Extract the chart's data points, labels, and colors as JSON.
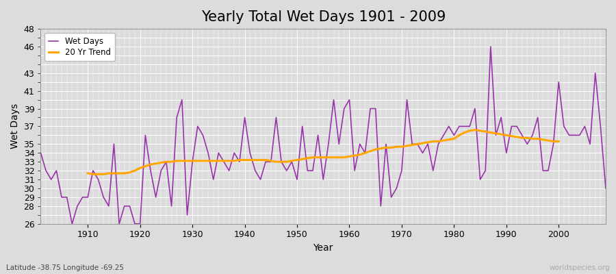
{
  "title": "Yearly Total Wet Days 1901 - 2009",
  "xlabel": "Year",
  "ylabel": "Wet Days",
  "subtitle": "Latitude -38.75 Longitude -69.25",
  "watermark": "worldspecies.org",
  "years": [
    1901,
    1902,
    1903,
    1904,
    1905,
    1906,
    1907,
    1908,
    1909,
    1910,
    1911,
    1912,
    1913,
    1914,
    1915,
    1916,
    1917,
    1918,
    1919,
    1920,
    1921,
    1922,
    1923,
    1924,
    1925,
    1926,
    1927,
    1928,
    1929,
    1930,
    1931,
    1932,
    1933,
    1934,
    1935,
    1936,
    1937,
    1938,
    1939,
    1940,
    1941,
    1942,
    1943,
    1944,
    1945,
    1946,
    1947,
    1948,
    1949,
    1950,
    1951,
    1952,
    1953,
    1954,
    1955,
    1956,
    1957,
    1958,
    1959,
    1960,
    1961,
    1962,
    1963,
    1964,
    1965,
    1966,
    1967,
    1968,
    1969,
    1970,
    1971,
    1972,
    1973,
    1974,
    1975,
    1976,
    1977,
    1978,
    1979,
    1980,
    1981,
    1982,
    1983,
    1984,
    1985,
    1986,
    1987,
    1988,
    1989,
    1990,
    1991,
    1992,
    1993,
    1994,
    1995,
    1996,
    1997,
    1998,
    1999,
    2000,
    2001,
    2002,
    2003,
    2004,
    2005,
    2006,
    2007,
    2008,
    2009
  ],
  "wet_days": [
    34,
    32,
    31,
    32,
    29,
    29,
    26,
    28,
    29,
    29,
    32,
    31,
    29,
    28,
    35,
    26,
    28,
    28,
    26,
    26,
    36,
    32,
    29,
    32,
    33,
    28,
    38,
    40,
    27,
    33,
    37,
    36,
    34,
    31,
    34,
    33,
    32,
    34,
    33,
    38,
    34,
    32,
    31,
    33,
    33,
    38,
    33,
    32,
    33,
    31,
    37,
    32,
    32,
    36,
    31,
    35,
    40,
    35,
    39,
    40,
    32,
    35,
    34,
    39,
    39,
    28,
    35,
    29,
    30,
    32,
    40,
    35,
    35,
    34,
    35,
    32,
    35,
    36,
    37,
    36,
    37,
    37,
    37,
    39,
    31,
    32,
    46,
    36,
    38,
    34,
    37,
    37,
    36,
    35,
    36,
    38,
    32,
    32,
    35,
    42,
    37,
    36,
    36,
    36,
    37,
    35,
    43,
    37,
    30
  ],
  "trend_years": [
    1910,
    1911,
    1912,
    1913,
    1914,
    1915,
    1916,
    1917,
    1918,
    1919,
    1920,
    1921,
    1922,
    1923,
    1924,
    1925,
    1926,
    1927,
    1928,
    1929,
    1930,
    1931,
    1932,
    1933,
    1934,
    1935,
    1936,
    1937,
    1938,
    1939,
    1940,
    1941,
    1942,
    1943,
    1944,
    1945,
    1946,
    1947,
    1948,
    1949,
    1950,
    1951,
    1952,
    1953,
    1954,
    1955,
    1956,
    1957,
    1958,
    1959,
    1960,
    1961,
    1962,
    1963,
    1964,
    1965,
    1966,
    1967,
    1968,
    1969,
    1970,
    1971,
    1972,
    1973,
    1974,
    1975,
    1976,
    1977,
    1978,
    1979,
    1980,
    1981,
    1982,
    1983,
    1984,
    1985,
    1986,
    1987,
    1988,
    1989,
    1990,
    1991,
    1992,
    1993,
    1994,
    1995,
    1996,
    1997,
    1998,
    1999,
    2000
  ],
  "trend_values": [
    31.7,
    31.6,
    31.6,
    31.6,
    31.7,
    31.7,
    31.7,
    31.7,
    31.8,
    32.0,
    32.3,
    32.5,
    32.7,
    32.8,
    32.9,
    33.0,
    33.0,
    33.1,
    33.1,
    33.1,
    33.1,
    33.1,
    33.1,
    33.1,
    33.1,
    33.1,
    33.1,
    33.1,
    33.1,
    33.2,
    33.2,
    33.2,
    33.2,
    33.2,
    33.2,
    33.1,
    33.0,
    33.0,
    33.0,
    33.1,
    33.2,
    33.3,
    33.4,
    33.5,
    33.5,
    33.5,
    33.5,
    33.5,
    33.5,
    33.5,
    33.6,
    33.7,
    33.8,
    34.0,
    34.2,
    34.4,
    34.5,
    34.6,
    34.6,
    34.7,
    34.7,
    34.8,
    34.9,
    35.0,
    35.1,
    35.2,
    35.3,
    35.3,
    35.4,
    35.5,
    35.6,
    36.0,
    36.3,
    36.5,
    36.6,
    36.5,
    36.4,
    36.3,
    36.2,
    36.1,
    36.0,
    35.9,
    35.8,
    35.7,
    35.7,
    35.6,
    35.6,
    35.5,
    35.4,
    35.3,
    35.3
  ],
  "wet_days_color": "#9933aa",
  "trend_color": "#FFA500",
  "ylim": [
    26,
    48
  ],
  "ytick_major": [
    26,
    28,
    30,
    32,
    34,
    35,
    37,
    39,
    41,
    43,
    46,
    48
  ],
  "bg_color": "#dcdcdc",
  "grid_major_color": "#ffffff",
  "grid_minor_color": "#ffffff",
  "title_fontsize": 15,
  "label_fontsize": 10,
  "tick_fontsize": 9
}
